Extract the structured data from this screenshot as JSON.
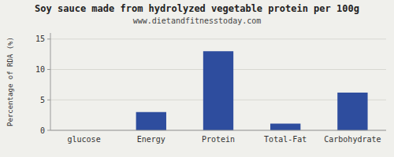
{
  "chart_data": {
    "type": "bar",
    "title": "Soy sauce made from hydrolyzed vegetable protein per 100g",
    "subtitle": "www.dietandfitnesstoday.com",
    "categories": [
      "glucose",
      "Energy",
      "Protein",
      "Total-Fat",
      "Carbohydrate"
    ],
    "values": [
      0,
      3.0,
      13.0,
      1.1,
      6.2
    ],
    "color": "#2e4d9e",
    "ylabel": "Percentage of RDA (%)",
    "ylim": [
      0,
      16
    ],
    "yticks": [
      0,
      5,
      10,
      15
    ],
    "grid": true
  }
}
